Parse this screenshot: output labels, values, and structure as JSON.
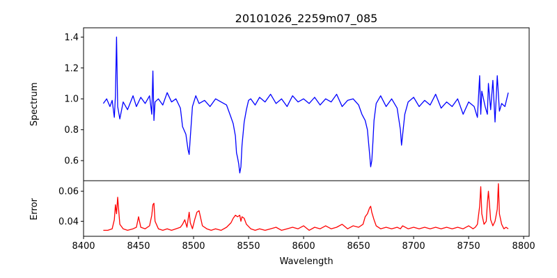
{
  "chart_data": [
    {
      "type": "line",
      "title": "20101026_2259m07_085",
      "xlabel": "",
      "ylabel": "Spectrum",
      "xlim": [
        8400,
        8805
      ],
      "ylim": [
        0.47,
        1.46
      ],
      "yticks": [
        0.6,
        0.8,
        1.0,
        1.2,
        1.4
      ],
      "ytick_labels": [
        "0.6",
        "0.8",
        "1.0",
        "1.2",
        "1.4"
      ],
      "grid": false,
      "legend": "none",
      "series": [
        {
          "color": "#0000ff",
          "x": [
            8418,
            8421,
            8424,
            8426,
            8428,
            8429,
            8430,
            8431,
            8433,
            8436,
            8440,
            8445,
            8448,
            8452,
            8456,
            8460,
            8462,
            8463,
            8464,
            8465,
            8468,
            8472,
            8476,
            8480,
            8484,
            8488,
            8490,
            8493,
            8495,
            8496,
            8497,
            8499,
            8502,
            8505,
            8510,
            8515,
            8520,
            8525,
            8530,
            8534,
            8536,
            8538,
            8539,
            8540,
            8541,
            8542,
            8543,
            8544,
            8546,
            8548,
            8550,
            8552,
            8556,
            8560,
            8565,
            8570,
            8575,
            8580,
            8585,
            8590,
            8595,
            8600,
            8605,
            8610,
            8615,
            8620,
            8625,
            8630,
            8635,
            8640,
            8645,
            8650,
            8653,
            8656,
            8658,
            8660,
            8661,
            8662,
            8663,
            8664,
            8666,
            8670,
            8675,
            8680,
            8685,
            8688,
            8689,
            8692,
            8695,
            8700,
            8705,
            8710,
            8715,
            8720,
            8725,
            8730,
            8735,
            8740,
            8745,
            8750,
            8755,
            8758,
            8760,
            8761,
            8762,
            8765,
            8767,
            8768,
            8770,
            8772,
            8774,
            8776,
            8778,
            8780,
            8783,
            8786
          ],
          "y": [
            0.97,
            1.0,
            0.95,
            0.99,
            0.88,
            1.02,
            1.4,
            0.95,
            0.87,
            0.98,
            0.93,
            1.02,
            0.95,
            1.01,
            0.97,
            1.02,
            0.9,
            1.18,
            0.86,
            0.98,
            1.0,
            0.96,
            1.04,
            0.98,
            1.0,
            0.94,
            0.82,
            0.77,
            0.67,
            0.64,
            0.75,
            0.95,
            1.02,
            0.97,
            0.99,
            0.95,
            1.0,
            0.98,
            0.96,
            0.88,
            0.84,
            0.76,
            0.65,
            0.62,
            0.58,
            0.52,
            0.56,
            0.7,
            0.85,
            0.93,
            0.99,
            1.0,
            0.96,
            1.01,
            0.98,
            1.03,
            0.97,
            1.0,
            0.95,
            1.02,
            0.98,
            1.0,
            0.97,
            1.01,
            0.96,
            1.0,
            0.98,
            1.03,
            0.95,
            0.99,
            1.0,
            0.96,
            0.9,
            0.86,
            0.8,
            0.64,
            0.56,
            0.6,
            0.72,
            0.86,
            0.97,
            1.02,
            0.95,
            1.0,
            0.94,
            0.8,
            0.7,
            0.9,
            0.98,
            1.01,
            0.95,
            0.99,
            0.96,
            1.03,
            0.94,
            0.98,
            0.95,
            1.0,
            0.9,
            0.98,
            0.95,
            0.88,
            1.15,
            0.9,
            1.05,
            0.95,
            0.9,
            1.1,
            0.93,
            1.12,
            0.85,
            1.15,
            0.92,
            0.97,
            0.95,
            1.04
          ]
        }
      ]
    },
    {
      "type": "line",
      "title": "",
      "xlabel": "Wavelength",
      "ylabel": "Error",
      "xlim": [
        8400,
        8805
      ],
      "ylim": [
        0.03,
        0.067
      ],
      "xticks": [
        8400,
        8450,
        8500,
        8550,
        8600,
        8650,
        8700,
        8750,
        8800
      ],
      "xtick_labels": [
        "8400",
        "8450",
        "8500",
        "8550",
        "8600",
        "8650",
        "8700",
        "8750",
        "8800"
      ],
      "yticks": [
        0.04,
        0.06
      ],
      "ytick_labels": [
        "0.04",
        "0.06"
      ],
      "grid": false,
      "legend": "none",
      "series": [
        {
          "color": "#ff0000",
          "x": [
            8418,
            8422,
            8426,
            8428,
            8429,
            8430,
            8431,
            8433,
            8436,
            8440,
            8445,
            8448,
            8450,
            8452,
            8456,
            8460,
            8462,
            8463,
            8464,
            8465,
            8468,
            8472,
            8476,
            8480,
            8484,
            8488,
            8490,
            8492,
            8494,
            8496,
            8497,
            8499,
            8501,
            8503,
            8505,
            8508,
            8512,
            8516,
            8520,
            8525,
            8530,
            8534,
            8536,
            8538,
            8540,
            8542,
            8543,
            8544,
            8546,
            8548,
            8552,
            8556,
            8560,
            8565,
            8570,
            8575,
            8580,
            8585,
            8590,
            8595,
            8600,
            8605,
            8610,
            8615,
            8620,
            8625,
            8630,
            8635,
            8640,
            8645,
            8650,
            8654,
            8656,
            8658,
            8660,
            8661,
            8662,
            8664,
            8666,
            8670,
            8675,
            8680,
            8685,
            8688,
            8690,
            8695,
            8700,
            8705,
            8710,
            8715,
            8720,
            8725,
            8730,
            8735,
            8740,
            8745,
            8750,
            8754,
            8756,
            8758,
            8760,
            8761,
            8762,
            8764,
            8766,
            8767,
            8768,
            8770,
            8772,
            8774,
            8776,
            8777,
            8778,
            8780,
            8782,
            8784,
            8786
          ],
          "y": [
            0.034,
            0.034,
            0.035,
            0.041,
            0.051,
            0.045,
            0.056,
            0.038,
            0.035,
            0.034,
            0.035,
            0.036,
            0.043,
            0.036,
            0.035,
            0.037,
            0.044,
            0.051,
            0.052,
            0.04,
            0.035,
            0.034,
            0.035,
            0.034,
            0.035,
            0.036,
            0.038,
            0.041,
            0.036,
            0.046,
            0.039,
            0.035,
            0.041,
            0.046,
            0.047,
            0.037,
            0.035,
            0.034,
            0.035,
            0.034,
            0.036,
            0.039,
            0.042,
            0.044,
            0.043,
            0.044,
            0.04,
            0.043,
            0.042,
            0.038,
            0.035,
            0.034,
            0.035,
            0.034,
            0.035,
            0.036,
            0.034,
            0.035,
            0.036,
            0.035,
            0.037,
            0.034,
            0.036,
            0.035,
            0.037,
            0.035,
            0.036,
            0.038,
            0.035,
            0.037,
            0.036,
            0.038,
            0.043,
            0.045,
            0.049,
            0.05,
            0.046,
            0.041,
            0.037,
            0.035,
            0.036,
            0.035,
            0.036,
            0.035,
            0.037,
            0.035,
            0.036,
            0.035,
            0.036,
            0.035,
            0.036,
            0.035,
            0.036,
            0.035,
            0.036,
            0.035,
            0.037,
            0.035,
            0.036,
            0.038,
            0.05,
            0.063,
            0.045,
            0.038,
            0.04,
            0.052,
            0.06,
            0.041,
            0.037,
            0.04,
            0.048,
            0.065,
            0.045,
            0.038,
            0.035,
            0.036,
            0.035
          ]
        }
      ]
    }
  ]
}
